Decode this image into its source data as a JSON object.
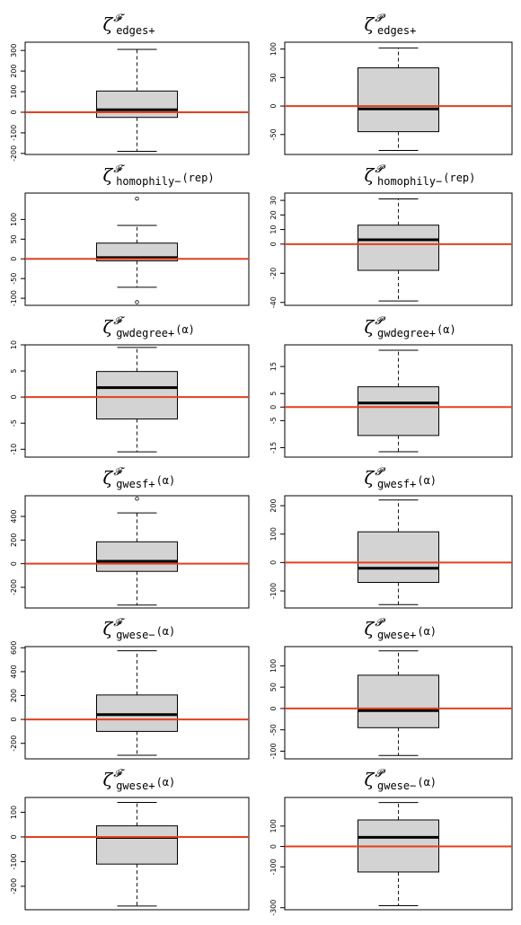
{
  "accent_colors": {
    "box_fill": "#d3d3d3",
    "median": "#000000",
    "ref_line": "#e2401e",
    "frame": "#000000"
  },
  "chart_data": [
    {
      "type": "boxplot",
      "title": {
        "symbol": "ζ",
        "superscript": "𝓕",
        "subscript": "edges+",
        "arg": ""
      },
      "box": {
        "whisker_low": -190,
        "q1": -25,
        "median": 12,
        "q3": 103,
        "whisker_high": 305,
        "outliers": []
      },
      "ref_line": 0,
      "ylim": [
        -205,
        340
      ],
      "yticks": [
        -200,
        -100,
        0,
        100,
        200,
        300
      ],
      "ytick_labels": [
        "-200",
        "-100",
        "0",
        "100",
        "200",
        "300"
      ]
    },
    {
      "type": "boxplot",
      "title": {
        "symbol": "ζ",
        "superscript": "𝓟",
        "subscript": "edges+",
        "arg": ""
      },
      "box": {
        "whisker_low": -78,
        "q1": -45,
        "median": -5,
        "q3": 67,
        "whisker_high": 102,
        "outliers": []
      },
      "ref_line": 0,
      "ylim": [
        -85,
        112
      ],
      "yticks": [
        -50,
        0,
        50,
        100
      ],
      "ytick_labels": [
        "-50",
        "0",
        "50",
        "100"
      ]
    },
    {
      "type": "boxplot",
      "title": {
        "symbol": "ζ",
        "superscript": "𝓕",
        "subscript": "homophily−",
        "arg": "(rep)"
      },
      "box": {
        "whisker_low": -72,
        "q1": -5,
        "median": 3,
        "q3": 40,
        "whisker_high": 85,
        "outliers": [
          153,
          -110
        ]
      },
      "ref_line": 0,
      "ylim": [
        -118,
        167
      ],
      "yticks": [
        -100,
        -50,
        0,
        50,
        100
      ],
      "ytick_labels": [
        "-100",
        "-50",
        "0",
        "50",
        "100"
      ]
    },
    {
      "type": "boxplot",
      "title": {
        "symbol": "ζ",
        "superscript": "𝓟",
        "subscript": "homophily−",
        "arg": "(rep)"
      },
      "box": {
        "whisker_low": -39,
        "q1": -18,
        "median": 3,
        "q3": 13,
        "whisker_high": 31,
        "outliers": []
      },
      "ref_line": 0,
      "ylim": [
        -42,
        35
      ],
      "yticks": [
        -40,
        -20,
        0,
        10,
        20,
        30
      ],
      "ytick_labels": [
        "-40",
        "-20",
        "0",
        "10",
        "20",
        "30"
      ]
    },
    {
      "type": "boxplot",
      "title": {
        "symbol": "ζ",
        "superscript": "𝓕",
        "subscript": "gwdegree+",
        "arg": "(α)"
      },
      "box": {
        "whisker_low": -10.5,
        "q1": -4.2,
        "median": 1.8,
        "q3": 4.9,
        "whisker_high": 9.5,
        "outliers": []
      },
      "ref_line": 0,
      "ylim": [
        -11.5,
        10
      ],
      "yticks": [
        -10,
        -5,
        0,
        5,
        10
      ],
      "ytick_labels": [
        "-10",
        "-5",
        "0",
        "5",
        "10"
      ]
    },
    {
      "type": "boxplot",
      "title": {
        "symbol": "ζ",
        "superscript": "𝓟",
        "subscript": "gwdegree+",
        "arg": "(α)"
      },
      "box": {
        "whisker_low": -16.5,
        "q1": -10.5,
        "median": 1.5,
        "q3": 7.5,
        "whisker_high": 21,
        "outliers": []
      },
      "ref_line": 0,
      "ylim": [
        -18.5,
        23
      ],
      "yticks": [
        -15,
        -5,
        0,
        5,
        15
      ],
      "ytick_labels": [
        "-15",
        "-5",
        "0",
        "5",
        "15"
      ]
    },
    {
      "type": "boxplot",
      "title": {
        "symbol": "ζ",
        "superscript": "𝓕",
        "subscript": "gwesf+",
        "arg": "(α)"
      },
      "box": {
        "whisker_low": -350,
        "q1": -65,
        "median": 20,
        "q3": 185,
        "whisker_high": 430,
        "outliers": [
          550
        ]
      },
      "ref_line": 0,
      "ylim": [
        -375,
        575
      ],
      "yticks": [
        -200,
        0,
        200,
        400
      ],
      "ytick_labels": [
        "-200",
        "0",
        "200",
        "400"
      ]
    },
    {
      "type": "boxplot",
      "title": {
        "symbol": "ζ",
        "superscript": "𝓟",
        "subscript": "gwesf+",
        "arg": "(α)"
      },
      "box": {
        "whisker_low": -148,
        "q1": -70,
        "median": -20,
        "q3": 108,
        "whisker_high": 220,
        "outliers": []
      },
      "ref_line": 0,
      "ylim": [
        -160,
        235
      ],
      "yticks": [
        -100,
        0,
        100,
        200
      ],
      "ytick_labels": [
        "-100",
        "0",
        "100",
        "200"
      ]
    },
    {
      "type": "boxplot",
      "title": {
        "symbol": "ζ",
        "superscript": "𝓕",
        "subscript": "gwese−",
        "arg": "(α)"
      },
      "box": {
        "whisker_low": -300,
        "q1": -100,
        "median": 40,
        "q3": 205,
        "whisker_high": 575,
        "outliers": []
      },
      "ref_line": 0,
      "ylim": [
        -330,
        610
      ],
      "yticks": [
        -200,
        0,
        200,
        400,
        600
      ],
      "ytick_labels": [
        "-200",
        "0",
        "200",
        "400",
        "600"
      ]
    },
    {
      "type": "boxplot",
      "title": {
        "symbol": "ζ",
        "superscript": "𝓟",
        "subscript": "gwese+",
        "arg": "(α)"
      },
      "box": {
        "whisker_low": -110,
        "q1": -45,
        "median": -5,
        "q3": 78,
        "whisker_high": 135,
        "outliers": []
      },
      "ref_line": 0,
      "ylim": [
        -118,
        145
      ],
      "yticks": [
        -100,
        -50,
        0,
        50,
        100
      ],
      "ytick_labels": [
        "-100",
        "-50",
        "0",
        "50",
        "100"
      ]
    },
    {
      "type": "boxplot",
      "title": {
        "symbol": "ζ",
        "superscript": "𝓕",
        "subscript": "gwese+",
        "arg": "(α)"
      },
      "box": {
        "whisker_low": -280,
        "q1": -110,
        "median": -2,
        "q3": 45,
        "whisker_high": 140,
        "outliers": []
      },
      "ref_line": 0,
      "ylim": [
        -295,
        160
      ],
      "yticks": [
        -200,
        -100,
        0,
        100
      ],
      "ytick_labels": [
        "-200",
        "-100",
        "0",
        "100"
      ]
    },
    {
      "type": "boxplot",
      "title": {
        "symbol": "ζ",
        "superscript": "𝓟",
        "subscript": "gwese−",
        "arg": "(α)"
      },
      "box": {
        "whisker_low": -290,
        "q1": -125,
        "median": 45,
        "q3": 130,
        "whisker_high": 215,
        "outliers": []
      },
      "ref_line": 0,
      "ylim": [
        -310,
        240
      ],
      "yticks": [
        -300,
        -100,
        0,
        100
      ],
      "ytick_labels": [
        "-300",
        "-100",
        "0",
        "100"
      ]
    }
  ]
}
